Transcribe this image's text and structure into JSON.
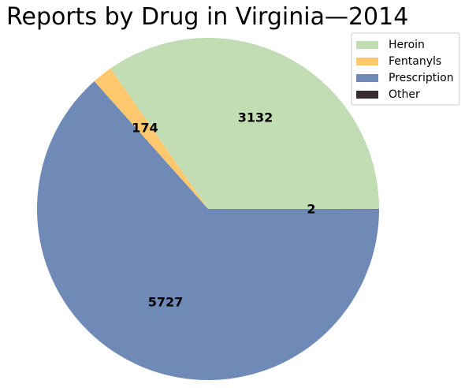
{
  "chart_data": {
    "type": "pie",
    "title": "Reports by Drug in Virginia—2014",
    "categories": [
      "Heroin",
      "Fentanyls",
      "Prescription",
      "Other"
    ],
    "values": [
      3132,
      174,
      5727,
      2
    ],
    "colors": [
      "#c2ddb4",
      "#fec86f",
      "#6f8ab7",
      "#352b31"
    ],
    "data_labels": [
      "3132",
      "174",
      "5727",
      "2"
    ],
    "start_angle_deg": 0,
    "direction": "counterclockwise",
    "legend_position": "top-right"
  }
}
